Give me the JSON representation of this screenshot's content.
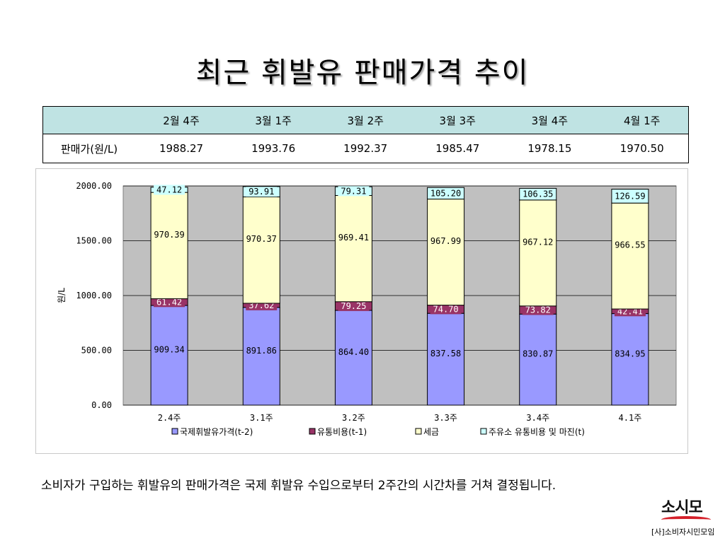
{
  "slide": {
    "title": "최근 휘발유 판매가격 추이",
    "caption": "소비자가 구입하는 휘발유의 판매가격은 국제 휘발유 수입으로부터 2주간의 시간차를 거쳐 결정됩니다."
  },
  "table": {
    "headers": [
      "",
      "2월 4주",
      "3월 1주",
      "3월 2주",
      "3월 3주",
      "3월 4주",
      "4월 1주"
    ],
    "row_label": "판매가(원/L)",
    "values": [
      "1988.27",
      "1993.76",
      "1992.37",
      "1985.47",
      "1978.15",
      "1970.50"
    ]
  },
  "chart_data": {
    "type": "bar",
    "stacked": true,
    "categories": [
      "2.4주",
      "3.1주",
      "3.2주",
      "3.3주",
      "3.4주",
      "4.1주"
    ],
    "ylabel": "원/L",
    "ylim": [
      0,
      2000
    ],
    "yticks": [
      "0.00",
      "500.00",
      "1000.00",
      "1500.00",
      "2000.00"
    ],
    "plot_background": "#c0c0c0",
    "legend_position": "bottom",
    "series": [
      {
        "name": "국제휘발유가격(t-2)",
        "color": "#9999ff",
        "values": [
          909.34,
          891.86,
          864.4,
          837.58,
          830.87,
          834.95
        ],
        "labels": [
          "909.34",
          "891.86",
          "864.40",
          "837.58",
          "830.87",
          "834.95"
        ]
      },
      {
        "name": "유통비용(t-1)",
        "color": "#993366",
        "values": [
          61.42,
          37.62,
          79.25,
          74.7,
          73.82,
          42.41
        ],
        "labels": [
          "61.42",
          "37.62",
          "79.25",
          "74.70",
          "73.82",
          "42.41"
        ]
      },
      {
        "name": "세금",
        "color": "#ffffcc",
        "values": [
          970.39,
          970.37,
          969.41,
          967.99,
          967.12,
          966.55
        ],
        "labels": [
          "970.39",
          "970.37",
          "969.41",
          "967.99",
          "967.12",
          "966.55"
        ]
      },
      {
        "name": "주유소 유통비용 및 마진(t)",
        "color": "#ccffff",
        "values": [
          47.12,
          93.91,
          79.31,
          105.2,
          106.35,
          126.59
        ],
        "labels": [
          "47.12",
          "93.91",
          "79.31",
          "105.20",
          "106.35",
          "126.59"
        ]
      }
    ]
  },
  "logo": {
    "main": "소시모",
    "sub": "[사]소비자시민모임"
  }
}
